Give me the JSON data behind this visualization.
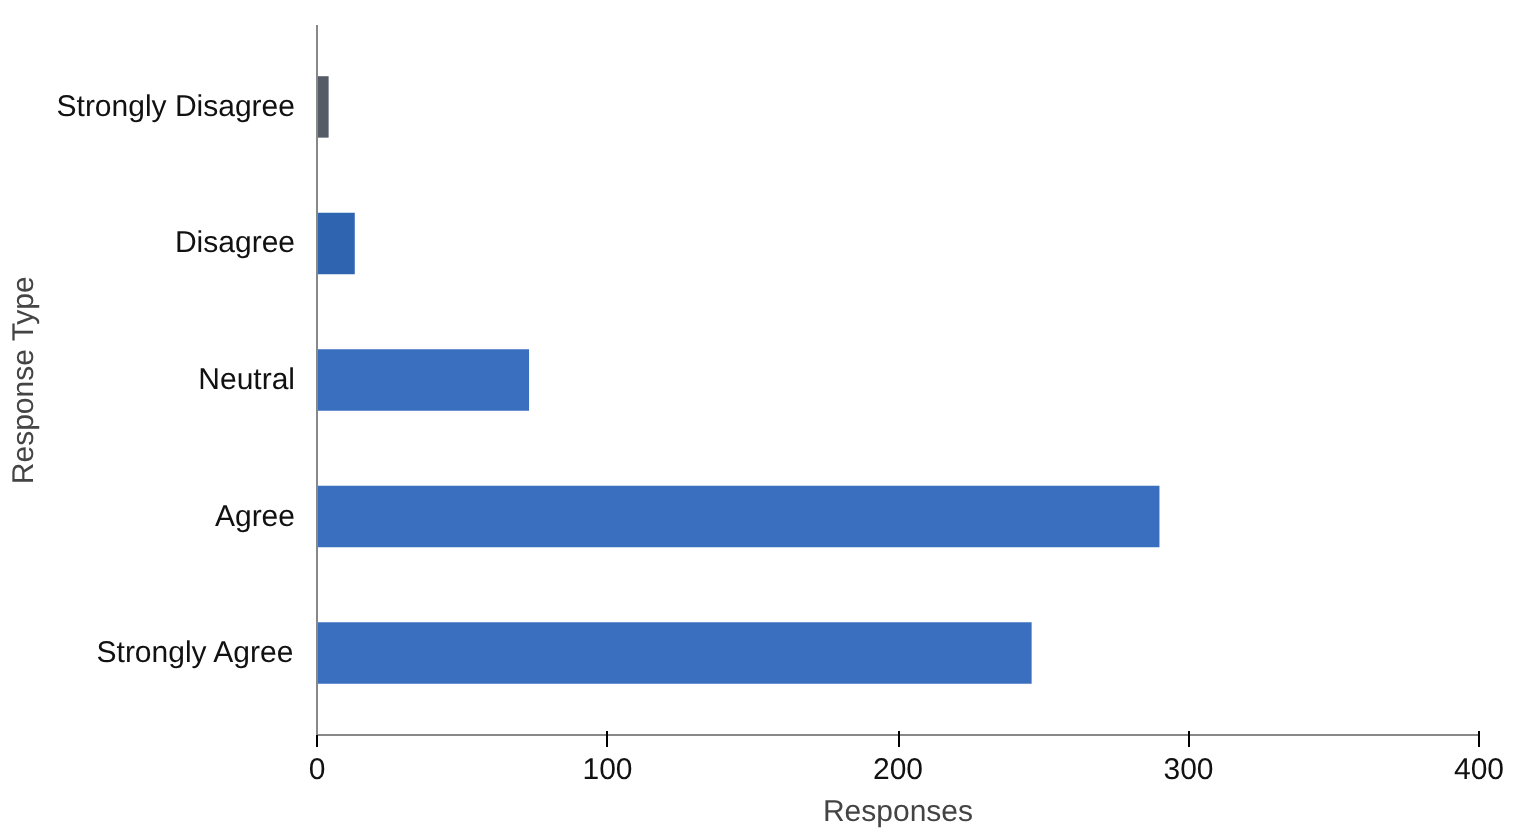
{
  "chart_data": {
    "type": "bar",
    "orientation": "horizontal",
    "xlabel": "Responses",
    "ylabel": "Response Type",
    "categories": [
      "Strongly Disagree",
      "Disagree",
      "Neutral",
      "Agree",
      "Strongly Agree"
    ],
    "values": [
      4,
      13,
      73,
      290,
      246
    ],
    "colors": [
      "#555c66",
      "#2f64b0",
      "#3a6fc0",
      "#3a6fc0",
      "#3a6fc0"
    ],
    "xlim": [
      0,
      400
    ],
    "xticks": [
      0,
      100,
      200,
      300,
      400
    ],
    "grid": false
  }
}
